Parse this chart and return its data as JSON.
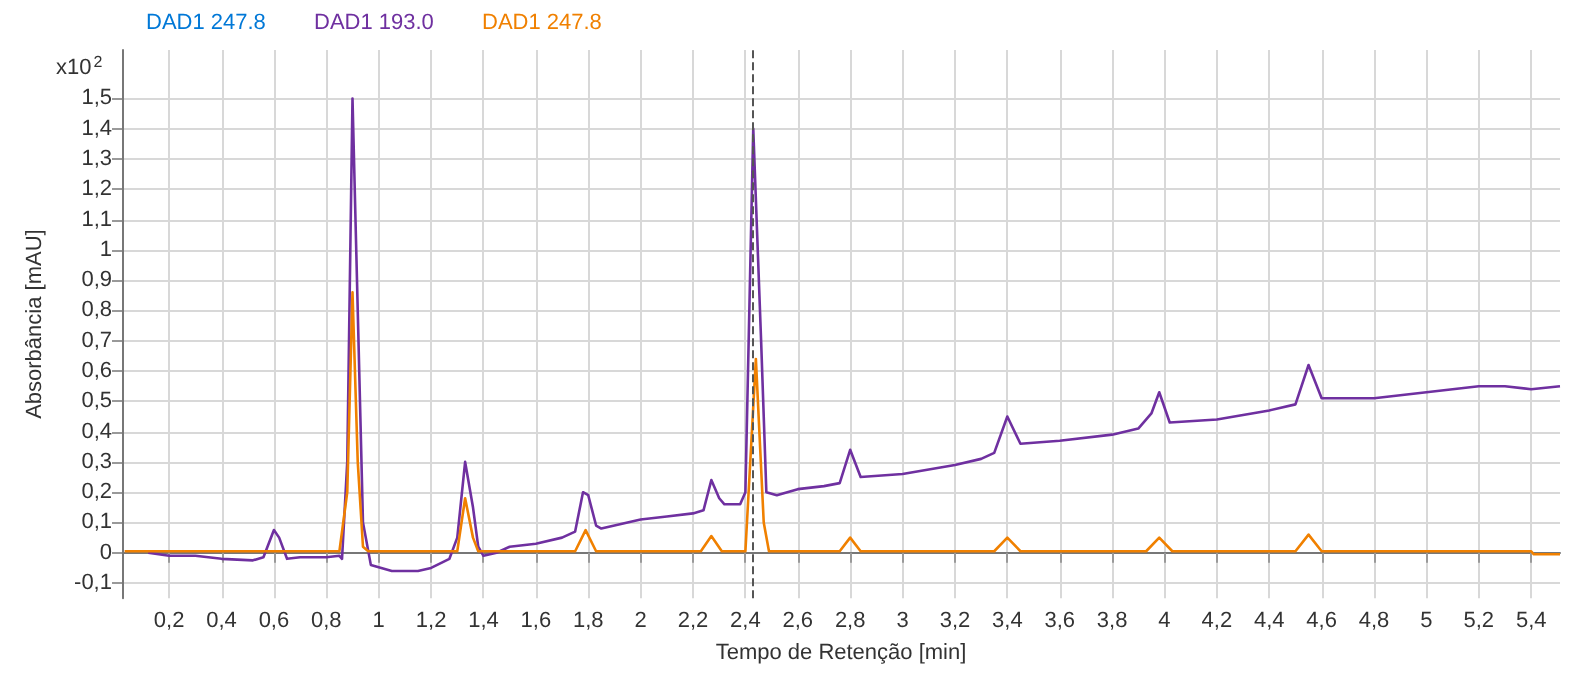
{
  "chart_data": {
    "type": "line",
    "xlabel": "Tempo de Retenção [min]",
    "ylabel": "Absorbância [mAU]",
    "annotations": [
      "x10$^{2}$"
    ],
    "xlim": [
      0.02,
      5.51
    ],
    "ylim": [
      -0.15,
      1.66
    ],
    "xticks": [
      {
        "value": 0.2,
        "label": "0,2"
      },
      {
        "value": 0.4,
        "label": "0,4"
      },
      {
        "value": 0.6,
        "label": "0,6"
      },
      {
        "value": 0.8,
        "label": "0,8"
      },
      1,
      {
        "value": 1.2,
        "label": "1,2"
      },
      {
        "value": 1.4,
        "label": "1,4"
      },
      {
        "value": 1.6,
        "label": "1,6"
      },
      {
        "value": 1.8,
        "label": "1,8"
      },
      2,
      {
        "value": 2.2,
        "label": "2,2"
      },
      {
        "value": 2.4,
        "label": "2,4"
      },
      {
        "value": 2.6,
        "label": "2,6"
      },
      {
        "value": 2.8,
        "label": "2,8"
      },
      3,
      {
        "value": 3.2,
        "label": "3,2"
      },
      {
        "value": 3.4,
        "label": "3,4"
      },
      {
        "value": 3.6,
        "label": "3,6"
      },
      {
        "value": 3.8,
        "label": "3,8"
      },
      4,
      {
        "value": 4.2,
        "label": "4,2"
      },
      {
        "value": 4.4,
        "label": "4,4"
      },
      {
        "value": 4.6,
        "label": "4,6"
      },
      {
        "value": 4.8,
        "label": "4,8"
      },
      5,
      {
        "value": 5.2,
        "label": "5,2"
      },
      {
        "value": 5.4,
        "label": "5,4"
      }
    ],
    "yticks": [
      {
        "value": -0.1,
        "label": "-0,1"
      },
      0,
      {
        "value": 0.1,
        "label": "0,1"
      },
      {
        "value": 0.2,
        "label": "0,2"
      },
      {
        "value": 0.3,
        "label": "0,3"
      },
      {
        "value": 0.4,
        "label": "0,4"
      },
      {
        "value": 0.5,
        "label": "0,5"
      },
      {
        "value": 0.6,
        "label": "0,6"
      },
      {
        "value": 0.7,
        "label": "0,7"
      },
      {
        "value": 0.8,
        "label": "0,8"
      },
      {
        "value": 0.9,
        "label": "0,9"
      },
      1,
      {
        "value": 1.1,
        "label": "1,1"
      },
      {
        "value": 1.2,
        "label": "1,2"
      },
      {
        "value": 1.3,
        "label": "1,3"
      },
      {
        "value": 1.4,
        "label": "1,4"
      },
      {
        "value": 1.5,
        "label": "1,5"
      }
    ],
    "grid": true,
    "legend": "top",
    "marker": "none",
    "line_style": "solid",
    "ref_lines": [
      {
        "axis": "x",
        "value": 2.43,
        "color": "#555555",
        "line_style": "dashed"
      }
    ],
    "series": [
      {
        "name": "DAD1 247.8",
        "color": "#0078d7"
      },
      {
        "name": "DAD1 193.0",
        "color": "#6f30a0",
        "x": [
          0.12,
          0.2,
          0.3,
          0.4,
          0.52,
          0.56,
          0.6,
          0.62,
          0.65,
          0.7,
          0.8,
          0.85,
          0.86,
          0.88,
          0.9,
          0.92,
          0.94,
          0.97,
          1.05,
          1.15,
          1.2,
          1.27,
          1.3,
          1.33,
          1.36,
          1.38,
          1.4,
          1.45,
          1.5,
          1.6,
          1.7,
          1.75,
          1.78,
          1.8,
          1.83,
          1.85,
          1.9,
          2.0,
          2.1,
          2.2,
          2.24,
          2.27,
          2.3,
          2.32,
          2.38,
          2.4,
          2.43,
          2.46,
          2.48,
          2.52,
          2.6,
          2.7,
          2.76,
          2.8,
          2.84,
          3.0,
          3.2,
          3.3,
          3.35,
          3.4,
          3.45,
          3.6,
          3.8,
          3.9,
          3.95,
          3.98,
          4.02,
          4.2,
          4.4,
          4.5,
          4.55,
          4.6,
          4.8,
          5.0,
          5.2,
          5.3,
          5.4,
          5.51
        ],
        "values": [
          0.0,
          -0.01,
          -0.01,
          -0.02,
          -0.025,
          -0.015,
          0.075,
          0.05,
          -0.02,
          -0.015,
          -0.015,
          -0.01,
          -0.02,
          0.3,
          1.5,
          0.8,
          0.1,
          -0.04,
          -0.06,
          -0.06,
          -0.05,
          -0.02,
          0.05,
          0.3,
          0.15,
          0.02,
          -0.01,
          0.0,
          0.02,
          0.03,
          0.05,
          0.07,
          0.2,
          0.19,
          0.09,
          0.08,
          0.09,
          0.11,
          0.12,
          0.13,
          0.14,
          0.24,
          0.18,
          0.16,
          0.16,
          0.2,
          1.4,
          0.7,
          0.2,
          0.19,
          0.21,
          0.22,
          0.23,
          0.34,
          0.25,
          0.26,
          0.29,
          0.31,
          0.33,
          0.45,
          0.36,
          0.37,
          0.39,
          0.41,
          0.46,
          0.53,
          0.43,
          0.44,
          0.47,
          0.49,
          0.62,
          0.51,
          0.51,
          0.53,
          0.55,
          0.55,
          0.54,
          0.55
        ]
      },
      {
        "name": "DAD1 247.8",
        "color": "#f08000",
        "x": [
          0.03,
          0.85,
          0.88,
          0.9,
          0.92,
          0.94,
          0.96,
          1.3,
          1.33,
          1.36,
          1.38,
          1.75,
          1.79,
          1.83,
          2.23,
          2.27,
          2.31,
          2.4,
          2.44,
          2.47,
          2.49,
          2.76,
          2.8,
          2.84,
          3.35,
          3.4,
          3.45,
          3.93,
          3.98,
          4.03,
          4.5,
          4.55,
          4.6,
          5.4,
          5.41,
          5.51
        ],
        "values": [
          0.005,
          0.005,
          0.2,
          0.86,
          0.3,
          0.02,
          0.005,
          0.005,
          0.18,
          0.05,
          0.005,
          0.005,
          0.075,
          0.005,
          0.005,
          0.055,
          0.005,
          0.005,
          0.64,
          0.1,
          0.005,
          0.005,
          0.05,
          0.005,
          0.005,
          0.05,
          0.005,
          0.005,
          0.05,
          0.005,
          0.005,
          0.06,
          0.005,
          0.005,
          -0.005,
          -0.005
        ]
      }
    ]
  }
}
